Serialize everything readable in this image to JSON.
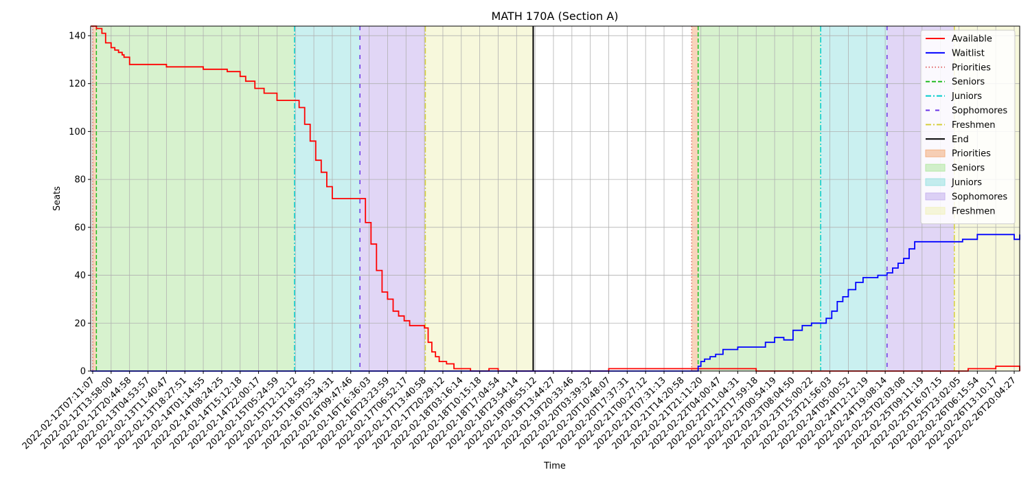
{
  "chart_data": {
    "type": "line",
    "title": "MATH 170A (Section A)",
    "xlabel": "Time",
    "ylabel": "Seats",
    "ylim": [
      0,
      144
    ],
    "yticks": [
      0,
      20,
      40,
      60,
      80,
      100,
      120,
      140
    ],
    "grid": true,
    "legend_position": "upper right",
    "x_tick_labels": [
      "2022-02-12T07:11:07",
      "2022-02-12T13:58:00",
      "2022-02-12T20:44:58",
      "2022-02-13T04:53:57",
      "2022-02-13T11:40:47",
      "2022-02-13T18:27:51",
      "2022-02-14T01:14:55",
      "2022-02-14T08:24:25",
      "2022-02-14T15:12:18",
      "2022-02-14T22:00:17",
      "2022-02-15T05:24:59",
      "2022-02-15T12:12:12",
      "2022-02-15T18:59:55",
      "2022-02-16T02:34:31",
      "2022-02-16T09:47:46",
      "2022-02-16T16:36:03",
      "2022-02-16T23:23:59",
      "2022-02-17T06:52:17",
      "2022-02-17T13:40:58",
      "2022-02-17T20:29:12",
      "2022-02-18T03:16:14",
      "2022-02-18T10:15:18",
      "2022-02-18T17:04:54",
      "2022-02-18T23:54:14",
      "2022-02-19T06:55:12",
      "2022-02-19T13:44:27",
      "2022-02-19T20:33:46",
      "2022-02-20T03:39:32",
      "2022-02-20T10:48:07",
      "2022-02-20T17:37:31",
      "2022-02-21T00:27:12",
      "2022-02-21T07:31:13",
      "2022-02-21T14:20:58",
      "2022-02-21T21:11:20",
      "2022-02-22T04:00:47",
      "2022-02-22T11:04:31",
      "2022-02-22T17:59:18",
      "2022-02-23T00:54:19",
      "2022-02-23T08:04:50",
      "2022-02-23T15:00:22",
      "2022-02-23T21:56:03",
      "2022-02-24T05:00:52",
      "2022-02-24T12:12:19",
      "2022-02-24T19:08:14",
      "2022-02-25T02:03:08",
      "2022-02-25T09:11:19",
      "2022-02-25T16:07:15",
      "2022-02-25T23:02:05",
      "2022-02-26T06:15:54",
      "2022-02-26T13:10:17",
      "2022-02-26T20:04:27"
    ],
    "phases": [
      {
        "name": "Priorities",
        "fill": "#f4b183",
        "line": "#e06666",
        "dash": "dotted",
        "segments": [
          [
            0,
            0.2
          ],
          [
            32.5,
            32.85
          ]
        ]
      },
      {
        "name": "Seniors",
        "fill": "#b6e8a6",
        "line": "#22bb22",
        "dash": "dashed",
        "segments": [
          [
            0.2,
            10.95
          ],
          [
            32.85,
            39.5
          ]
        ]
      },
      {
        "name": "Juniors",
        "fill": "#9fe3e3",
        "line": "#00cccc",
        "dash": "dashdot",
        "segments": [
          [
            10.95,
            14.5
          ],
          [
            39.5,
            43.1
          ]
        ]
      },
      {
        "name": "Sophomores",
        "fill": "#c8b4ee",
        "line": "#6a33e6",
        "dash": "loosedash",
        "segments": [
          [
            14.5,
            18.05
          ],
          [
            43.1,
            46.75
          ]
        ]
      },
      {
        "name": "Freshmen",
        "fill": "#f1f2bf",
        "line": "#d6cf3c",
        "dash": "dashdot",
        "segments": [
          [
            18.05,
            23.9
          ],
          [
            46.75,
            52.7
          ]
        ]
      }
    ],
    "end_markers": [
      23.9,
      52.7
    ],
    "series": [
      {
        "name": "Available",
        "color": "#ff0000",
        "x": [
          -0.1,
          0.2,
          0.5,
          0.7,
          1.0,
          1.2,
          1.4,
          1.6,
          1.7,
          2.0,
          3.0,
          4.0,
          5.0,
          6.0,
          7.0,
          7.3,
          8.0,
          8.3,
          8.8,
          9.3,
          10.0,
          11.0,
          11.2,
          11.5,
          11.8,
          12.1,
          12.4,
          12.7,
          13.0,
          13.3,
          13.7,
          14.0,
          14.5,
          14.8,
          15.1,
          15.4,
          15.7,
          16.0,
          16.3,
          16.6,
          16.9,
          17.2,
          17.5,
          18.0,
          18.2,
          18.4,
          18.6,
          18.8,
          19.2,
          19.6,
          20.5,
          21.0,
          21.5,
          22.0,
          23.9,
          24.8,
          28.0,
          32.5,
          33.0,
          36.0,
          40.0,
          43.0,
          46.75,
          47.5,
          48.5,
          49.0,
          52.7,
          53.5
        ],
        "y": [
          144,
          143,
          141,
          137,
          135,
          134,
          133,
          132,
          131,
          128,
          128,
          127,
          127,
          126,
          126,
          125,
          123,
          121,
          118,
          116,
          113,
          113,
          110,
          103,
          96,
          88,
          83,
          77,
          72,
          72,
          72,
          72,
          72,
          62,
          53,
          42,
          33,
          30,
          25,
          23,
          21,
          19,
          19,
          18,
          12,
          8,
          6,
          4,
          3,
          1,
          0,
          0,
          1,
          0,
          0,
          0,
          1,
          1,
          1,
          0,
          0,
          0,
          0,
          1,
          1,
          2,
          2,
          0
        ]
      },
      {
        "name": "Waitlist",
        "color": "#0000ff",
        "x": [
          -0.1,
          32.5,
          32.85,
          33.0,
          33.2,
          33.5,
          33.8,
          34.2,
          35.0,
          36.0,
          36.5,
          37.0,
          37.5,
          38.0,
          38.5,
          39.0,
          39.5,
          39.8,
          40.1,
          40.4,
          40.7,
          41.0,
          41.4,
          41.8,
          42.2,
          42.6,
          43.1,
          43.4,
          43.7,
          44.0,
          44.3,
          44.6,
          45.0,
          45.5,
          46.0,
          46.75,
          47.2,
          47.6,
          48.0,
          49.0,
          50.0,
          51.0,
          52.0,
          52.7,
          53.5
        ],
        "y": [
          0,
          0,
          2,
          4,
          5,
          6,
          7,
          9,
          10,
          10,
          12,
          14,
          13,
          17,
          19,
          20,
          20,
          22,
          25,
          29,
          31,
          34,
          37,
          39,
          39,
          40,
          41,
          43,
          45,
          47,
          51,
          54,
          54,
          54,
          54,
          54,
          55,
          55,
          57,
          57,
          55,
          55,
          56,
          57,
          57
        ]
      }
    ]
  }
}
